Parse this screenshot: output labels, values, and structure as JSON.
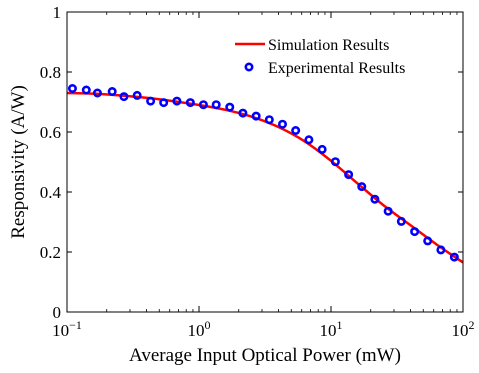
{
  "chart_data": {
    "type": "line",
    "xlabel": "Average Input Optical Power (mW)",
    "ylabel": "Responsivity (A/W)",
    "xscale": "log",
    "xlim": [
      0.1,
      100
    ],
    "ylim": [
      0,
      1
    ],
    "xticks": [
      {
        "value": 0.1,
        "base": "10",
        "exp": "−1"
      },
      {
        "value": 1,
        "base": "10",
        "exp": "0"
      },
      {
        "value": 10,
        "base": "10",
        "exp": "1"
      },
      {
        "value": 100,
        "base": "10",
        "exp": "2"
      }
    ],
    "yticks": [
      {
        "value": 0,
        "label": "0"
      },
      {
        "value": 0.2,
        "label": "0.2"
      },
      {
        "value": 0.4,
        "label": "0.4"
      },
      {
        "value": 0.6,
        "label": "0.6"
      },
      {
        "value": 0.8,
        "label": "0.8"
      },
      {
        "value": 1,
        "label": "1"
      }
    ],
    "grid": false,
    "legend_position": "top-right",
    "series": [
      {
        "name": "Simulation Results",
        "kind": "line",
        "color": "#ff0000",
        "x": [
          0.1,
          0.158,
          0.251,
          0.398,
          0.631,
          1,
          1.585,
          2.512,
          3.981,
          6.31,
          10,
          15.85,
          25.12,
          39.81,
          63.1,
          100
        ],
        "y": [
          0.73,
          0.728,
          0.722,
          0.714,
          0.703,
          0.69,
          0.674,
          0.651,
          0.617,
          0.569,
          0.504,
          0.429,
          0.355,
          0.29,
          0.225,
          0.165
        ]
      },
      {
        "name": "Experimental Results",
        "kind": "scatter",
        "color": "#0000ff",
        "x": [
          0.11,
          0.14,
          0.17,
          0.22,
          0.27,
          0.34,
          0.43,
          0.54,
          0.68,
          0.86,
          1.08,
          1.35,
          1.71,
          2.15,
          2.71,
          3.41,
          4.29,
          5.4,
          6.8,
          8.57,
          10.8,
          13.6,
          17.1,
          21.5,
          27.1,
          34.1,
          43,
          54,
          68,
          86
        ],
        "y": [
          0.745,
          0.74,
          0.73,
          0.735,
          0.718,
          0.722,
          0.703,
          0.698,
          0.703,
          0.698,
          0.691,
          0.691,
          0.683,
          0.663,
          0.653,
          0.641,
          0.626,
          0.605,
          0.574,
          0.542,
          0.501,
          0.458,
          0.418,
          0.376,
          0.336,
          0.302,
          0.268,
          0.237,
          0.207,
          0.183
        ]
      }
    ]
  }
}
